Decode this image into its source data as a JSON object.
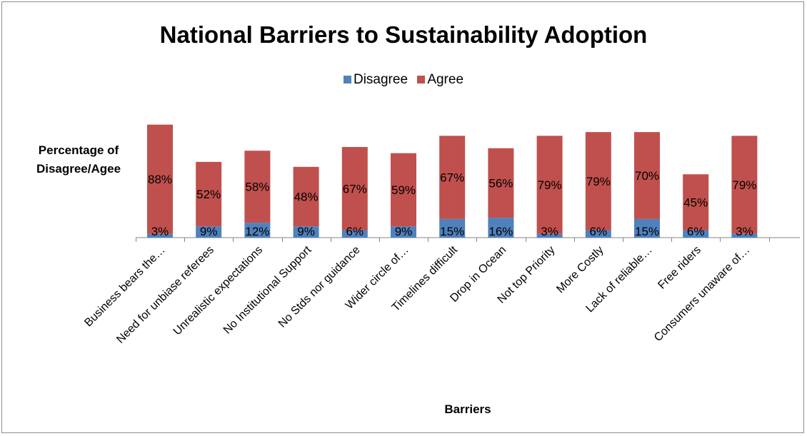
{
  "chart_data": {
    "type": "bar",
    "stacked": true,
    "title": "National Barriers to Sustainability Adoption",
    "xlabel": "Barriers",
    "ylabel": "Percentage of Disagree/Agee",
    "categories": [
      "Business bears the…",
      "Need for unbiase referees",
      "Unrealistic expectations",
      "No Institutional Support",
      "No Stds nor guidance",
      "Wider circle of…",
      "Timelines difficult",
      "Drop in Ocean",
      "Not top Priority",
      "More Costly",
      "Lack of reliable…",
      "Free riders",
      "Consumers unaware of…"
    ],
    "series": [
      {
        "name": "Disagree",
        "color": "#4f81bd",
        "values": [
          3,
          9,
          12,
          9,
          6,
          9,
          15,
          16,
          3,
          6,
          15,
          6,
          3
        ],
        "labels": [
          "3%",
          "9%",
          "12%",
          "9%",
          "6%",
          "9%",
          "15%",
          "16%",
          "3%",
          "6%",
          "15%",
          "6%",
          "3%"
        ]
      },
      {
        "name": "Agree",
        "color": "#c0504d",
        "values": [
          88,
          52,
          58,
          48,
          67,
          59,
          67,
          56,
          79,
          79,
          70,
          45,
          79
        ],
        "labels": [
          "88%",
          "52%",
          "58%",
          "48%",
          "67%",
          "59%",
          "67%",
          "56%",
          "79%",
          "79%",
          "70%",
          "45%",
          "79%"
        ]
      }
    ],
    "legend_position": "top",
    "grid": false
  }
}
